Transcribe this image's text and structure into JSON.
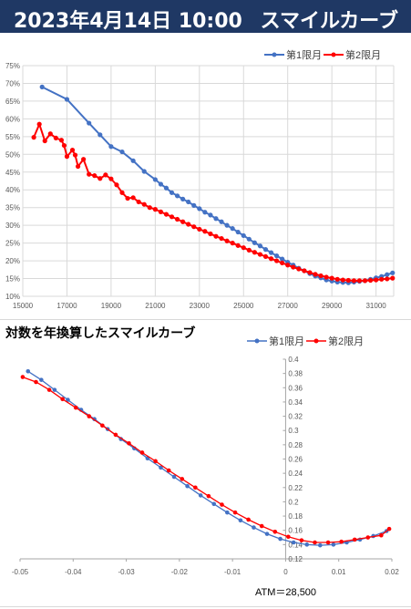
{
  "header": {
    "date": "2023年4月14日 10:00",
    "title": "スマイルカーブ"
  },
  "chart2_title": "対数を年換算したスマイルカーブ",
  "atm_note": "ATM＝28,500",
  "colors": {
    "series1": "#4472c4",
    "series2": "#ff0000",
    "grid": "#d9d9d9",
    "header_bg": "#1f3864"
  },
  "chart_data": [
    {
      "type": "line",
      "title": "",
      "legend_position": "top-right",
      "grid": true,
      "xlim": [
        15000,
        31800
      ],
      "ylim": [
        10,
        75
      ],
      "x_ticks": [
        15000,
        17000,
        19000,
        21000,
        23000,
        25000,
        27000,
        29000,
        31000
      ],
      "x_tick_labels": [
        "15000",
        "17000",
        "19000",
        "21000",
        "23000",
        "25000",
        "27000",
        "29000",
        "31000"
      ],
      "y_ticks": [
        10,
        15,
        20,
        25,
        30,
        35,
        40,
        45,
        50,
        55,
        60,
        65,
        70,
        75
      ],
      "y_tick_labels": [
        "10%",
        "15%",
        "20%",
        "25%",
        "30%",
        "35%",
        "40%",
        "45%",
        "50%",
        "55%",
        "60%",
        "65%",
        "70%",
        "75%"
      ],
      "series": [
        {
          "name": "第1限月",
          "x": [
            15875,
            17000,
            18000,
            18500,
            19000,
            19500,
            20000,
            20500,
            21000,
            21250,
            21500,
            21750,
            22000,
            22250,
            22500,
            22750,
            23000,
            23250,
            23500,
            23750,
            24000,
            24250,
            24500,
            24750,
            25000,
            25250,
            25500,
            25750,
            26000,
            26250,
            26500,
            26750,
            27000,
            27250,
            27500,
            27750,
            28000,
            28250,
            28500,
            28750,
            29000,
            29250,
            29500,
            29750,
            30000,
            30250,
            30500,
            30750,
            31000,
            31250,
            31500,
            31750
          ],
          "y": [
            69.0,
            65.5,
            58.8,
            55.5,
            52.2,
            50.7,
            48.2,
            45.2,
            42.9,
            41.6,
            40.5,
            39.2,
            38.3,
            37.4,
            36.6,
            35.6,
            34.7,
            33.7,
            32.9,
            31.9,
            31.0,
            30.0,
            29.1,
            28.1,
            27.1,
            26.1,
            25.1,
            24.2,
            23.2,
            22.3,
            21.4,
            20.5,
            19.6,
            18.8,
            17.9,
            17.2,
            16.4,
            15.7,
            15.2,
            14.6,
            14.3,
            14.0,
            13.9,
            13.8,
            14.0,
            14.2,
            14.4,
            14.8,
            15.2,
            15.6,
            16.1,
            16.6
          ]
        },
        {
          "name": "第2限月",
          "x": [
            15500,
            15750,
            16000,
            16250,
            16500,
            16750,
            16875,
            17000,
            17250,
            17375,
            17500,
            17750,
            18000,
            18250,
            18500,
            18750,
            19000,
            19250,
            19500,
            19750,
            20000,
            20250,
            20500,
            20750,
            21000,
            21250,
            21500,
            21750,
            22000,
            22250,
            22500,
            22750,
            23000,
            23250,
            23500,
            23750,
            24000,
            24250,
            24500,
            24750,
            25000,
            25250,
            25500,
            25750,
            26000,
            26250,
            26500,
            26750,
            27000,
            27250,
            27500,
            27750,
            28000,
            28250,
            28500,
            28750,
            29000,
            29250,
            29500,
            29750,
            30000,
            30250,
            30500,
            30750,
            31000,
            31250,
            31500,
            31750
          ],
          "y": [
            54.8,
            58.5,
            53.8,
            55.8,
            54.6,
            54.0,
            52.5,
            49.4,
            51.2,
            49.8,
            46.6,
            48.6,
            44.4,
            44.0,
            43.2,
            44.2,
            43.1,
            41.4,
            39.2,
            37.6,
            37.8,
            36.6,
            35.9,
            35.0,
            34.5,
            33.8,
            33.1,
            32.4,
            31.7,
            31.0,
            30.3,
            29.6,
            28.9,
            28.3,
            27.6,
            26.9,
            26.3,
            25.6,
            25.0,
            24.3,
            23.7,
            23.0,
            22.4,
            21.8,
            21.2,
            20.6,
            20.0,
            19.4,
            18.8,
            18.2,
            17.7,
            17.2,
            16.7,
            16.2,
            15.8,
            15.4,
            15.1,
            14.8,
            14.6,
            14.5,
            14.4,
            14.4,
            14.4,
            14.5,
            14.6,
            14.8,
            14.9,
            15.1
          ]
        }
      ]
    },
    {
      "type": "line",
      "title": "対数を年換算したスマイルカーブ",
      "legend_position": "top-right",
      "grid": false,
      "xlim": [
        -0.05,
        0.02
      ],
      "ylim": [
        0.12,
        0.4
      ],
      "x_ticks": [
        -0.05,
        -0.04,
        -0.03,
        -0.02,
        -0.01,
        0,
        0.01,
        0.02
      ],
      "x_tick_labels": [
        "-0.05",
        "-0.04",
        "-0.03",
        "-0.02",
        "-0.01",
        "0",
        "0.01",
        "0.02"
      ],
      "y_ticks": [
        0.12,
        0.14,
        0.16,
        0.18,
        0.2,
        0.22,
        0.24,
        0.26,
        0.28,
        0.3,
        0.32,
        0.34,
        0.36,
        0.38,
        0.4
      ],
      "y_tick_labels": [
        "0.12",
        "0.14",
        "0.16",
        "0.18",
        "0.2",
        "0.22",
        "0.24",
        "0.26",
        "0.28",
        "0.3",
        "0.32",
        "0.34",
        "0.36",
        "0.38",
        "0.4"
      ],
      "series": [
        {
          "name": "第1限月",
          "x": [
            -0.0485,
            -0.046,
            -0.0435,
            -0.041,
            -0.0385,
            -0.036,
            -0.0335,
            -0.031,
            -0.0285,
            -0.026,
            -0.0235,
            -0.021,
            -0.0185,
            -0.016,
            -0.0135,
            -0.011,
            -0.0085,
            -0.006,
            -0.0035,
            -0.001,
            0.0015,
            0.004,
            0.0065,
            0.009,
            0.0115,
            0.014,
            0.0165,
            0.019
          ],
          "y": [
            0.383,
            0.371,
            0.357,
            0.343,
            0.329,
            0.316,
            0.302,
            0.288,
            0.275,
            0.261,
            0.248,
            0.235,
            0.222,
            0.209,
            0.197,
            0.185,
            0.174,
            0.164,
            0.155,
            0.148,
            0.143,
            0.14,
            0.139,
            0.14,
            0.143,
            0.147,
            0.152,
            0.159
          ]
        },
        {
          "name": "第2限月",
          "x": [
            -0.0495,
            -0.047,
            -0.0445,
            -0.042,
            -0.0395,
            -0.037,
            -0.0345,
            -0.032,
            -0.0295,
            -0.027,
            -0.0245,
            -0.022,
            -0.0195,
            -0.017,
            -0.0145,
            -0.012,
            -0.0095,
            -0.007,
            -0.0045,
            -0.002,
            0.0005,
            0.003,
            0.0055,
            0.008,
            0.0105,
            0.013,
            0.0155,
            0.018,
            0.0195
          ],
          "y": [
            0.375,
            0.368,
            0.357,
            0.344,
            0.332,
            0.32,
            0.307,
            0.294,
            0.282,
            0.269,
            0.257,
            0.244,
            0.232,
            0.22,
            0.208,
            0.196,
            0.185,
            0.175,
            0.166,
            0.158,
            0.151,
            0.146,
            0.143,
            0.143,
            0.144,
            0.147,
            0.15,
            0.153,
            0.162
          ]
        }
      ]
    }
  ]
}
